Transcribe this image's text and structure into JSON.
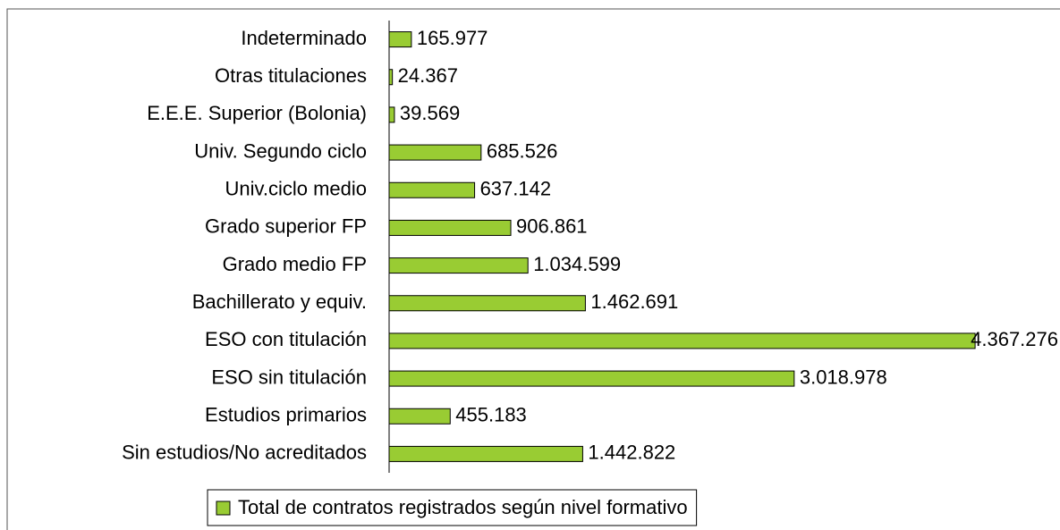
{
  "chart_data": {
    "type": "barh",
    "categories": [
      "Indeterminado",
      "Otras titulaciones",
      "E.E.E. Superior (Bolonia)",
      "Univ. Segundo ciclo",
      "Univ.ciclo medio ",
      "Grado superior FP",
      "Grado medio FP",
      "Bachillerato y equiv.",
      "ESO con titulación",
      "ESO sin titulación",
      "Estudios primarios",
      "Sin estudios/No acreditados"
    ],
    "series": [
      {
        "name": "Total de contratos registrados según nivel formativo",
        "color": "#99cc33",
        "values": [
          165977,
          24367,
          39569,
          685526,
          637142,
          906861,
          1034599,
          1462691,
          4367276,
          3018978,
          455183,
          1442822
        ],
        "value_labels": [
          "165.977",
          "24.367",
          "39.569",
          "685.526",
          "637.142",
          "906.861",
          "1.034.599",
          "1.462.691",
          "4.367.276",
          "3.018.978",
          "455.183",
          "1.442.822"
        ]
      }
    ],
    "xlim": [
      0,
      5000000
    ],
    "legend": "bottom"
  }
}
